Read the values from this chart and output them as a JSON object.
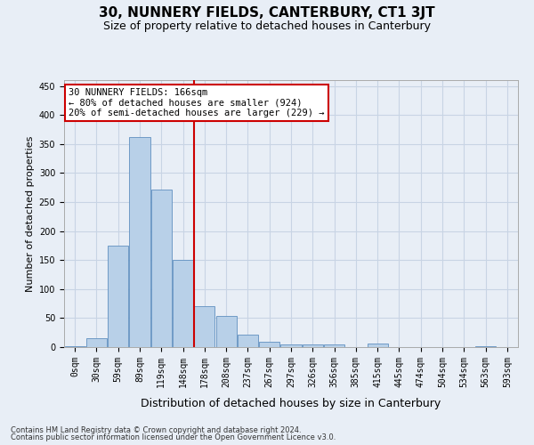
{
  "title": "30, NUNNERY FIELDS, CANTERBURY, CT1 3JT",
  "subtitle": "Size of property relative to detached houses in Canterbury",
  "xlabel": "Distribution of detached houses by size in Canterbury",
  "ylabel": "Number of detached properties",
  "footer_line1": "Contains HM Land Registry data © Crown copyright and database right 2024.",
  "footer_line2": "Contains public sector information licensed under the Open Government Licence v3.0.",
  "categories": [
    "0sqm",
    "30sqm",
    "59sqm",
    "89sqm",
    "119sqm",
    "148sqm",
    "178sqm",
    "208sqm",
    "237sqm",
    "267sqm",
    "297sqm",
    "326sqm",
    "356sqm",
    "385sqm",
    "415sqm",
    "445sqm",
    "474sqm",
    "504sqm",
    "534sqm",
    "563sqm",
    "593sqm"
  ],
  "bar_values": [
    2,
    16,
    175,
    362,
    272,
    150,
    70,
    53,
    22,
    9,
    4,
    4,
    5,
    0,
    6,
    0,
    0,
    0,
    0,
    2,
    0
  ],
  "bar_color": "#b8d0e8",
  "bar_edgecolor": "#6090c0",
  "vline_x_idx": 6,
  "vline_color": "#cc0000",
  "annotation_text": "30 NUNNERY FIELDS: 166sqm\n← 80% of detached houses are smaller (924)\n20% of semi-detached houses are larger (229) →",
  "annotation_box_edgecolor": "#cc0000",
  "annotation_box_facecolor": "#ffffff",
  "ylim": [
    0,
    460
  ],
  "yticks": [
    0,
    50,
    100,
    150,
    200,
    250,
    300,
    350,
    400,
    450
  ],
  "grid_color": "#c8d4e4",
  "bg_color": "#e8eef6",
  "plot_bg_color": "#e8eef6",
  "title_fontsize": 11,
  "subtitle_fontsize": 9,
  "xlabel_fontsize": 9,
  "ylabel_fontsize": 8,
  "tick_fontsize": 7,
  "footer_fontsize": 6,
  "ann_fontsize": 7.5
}
